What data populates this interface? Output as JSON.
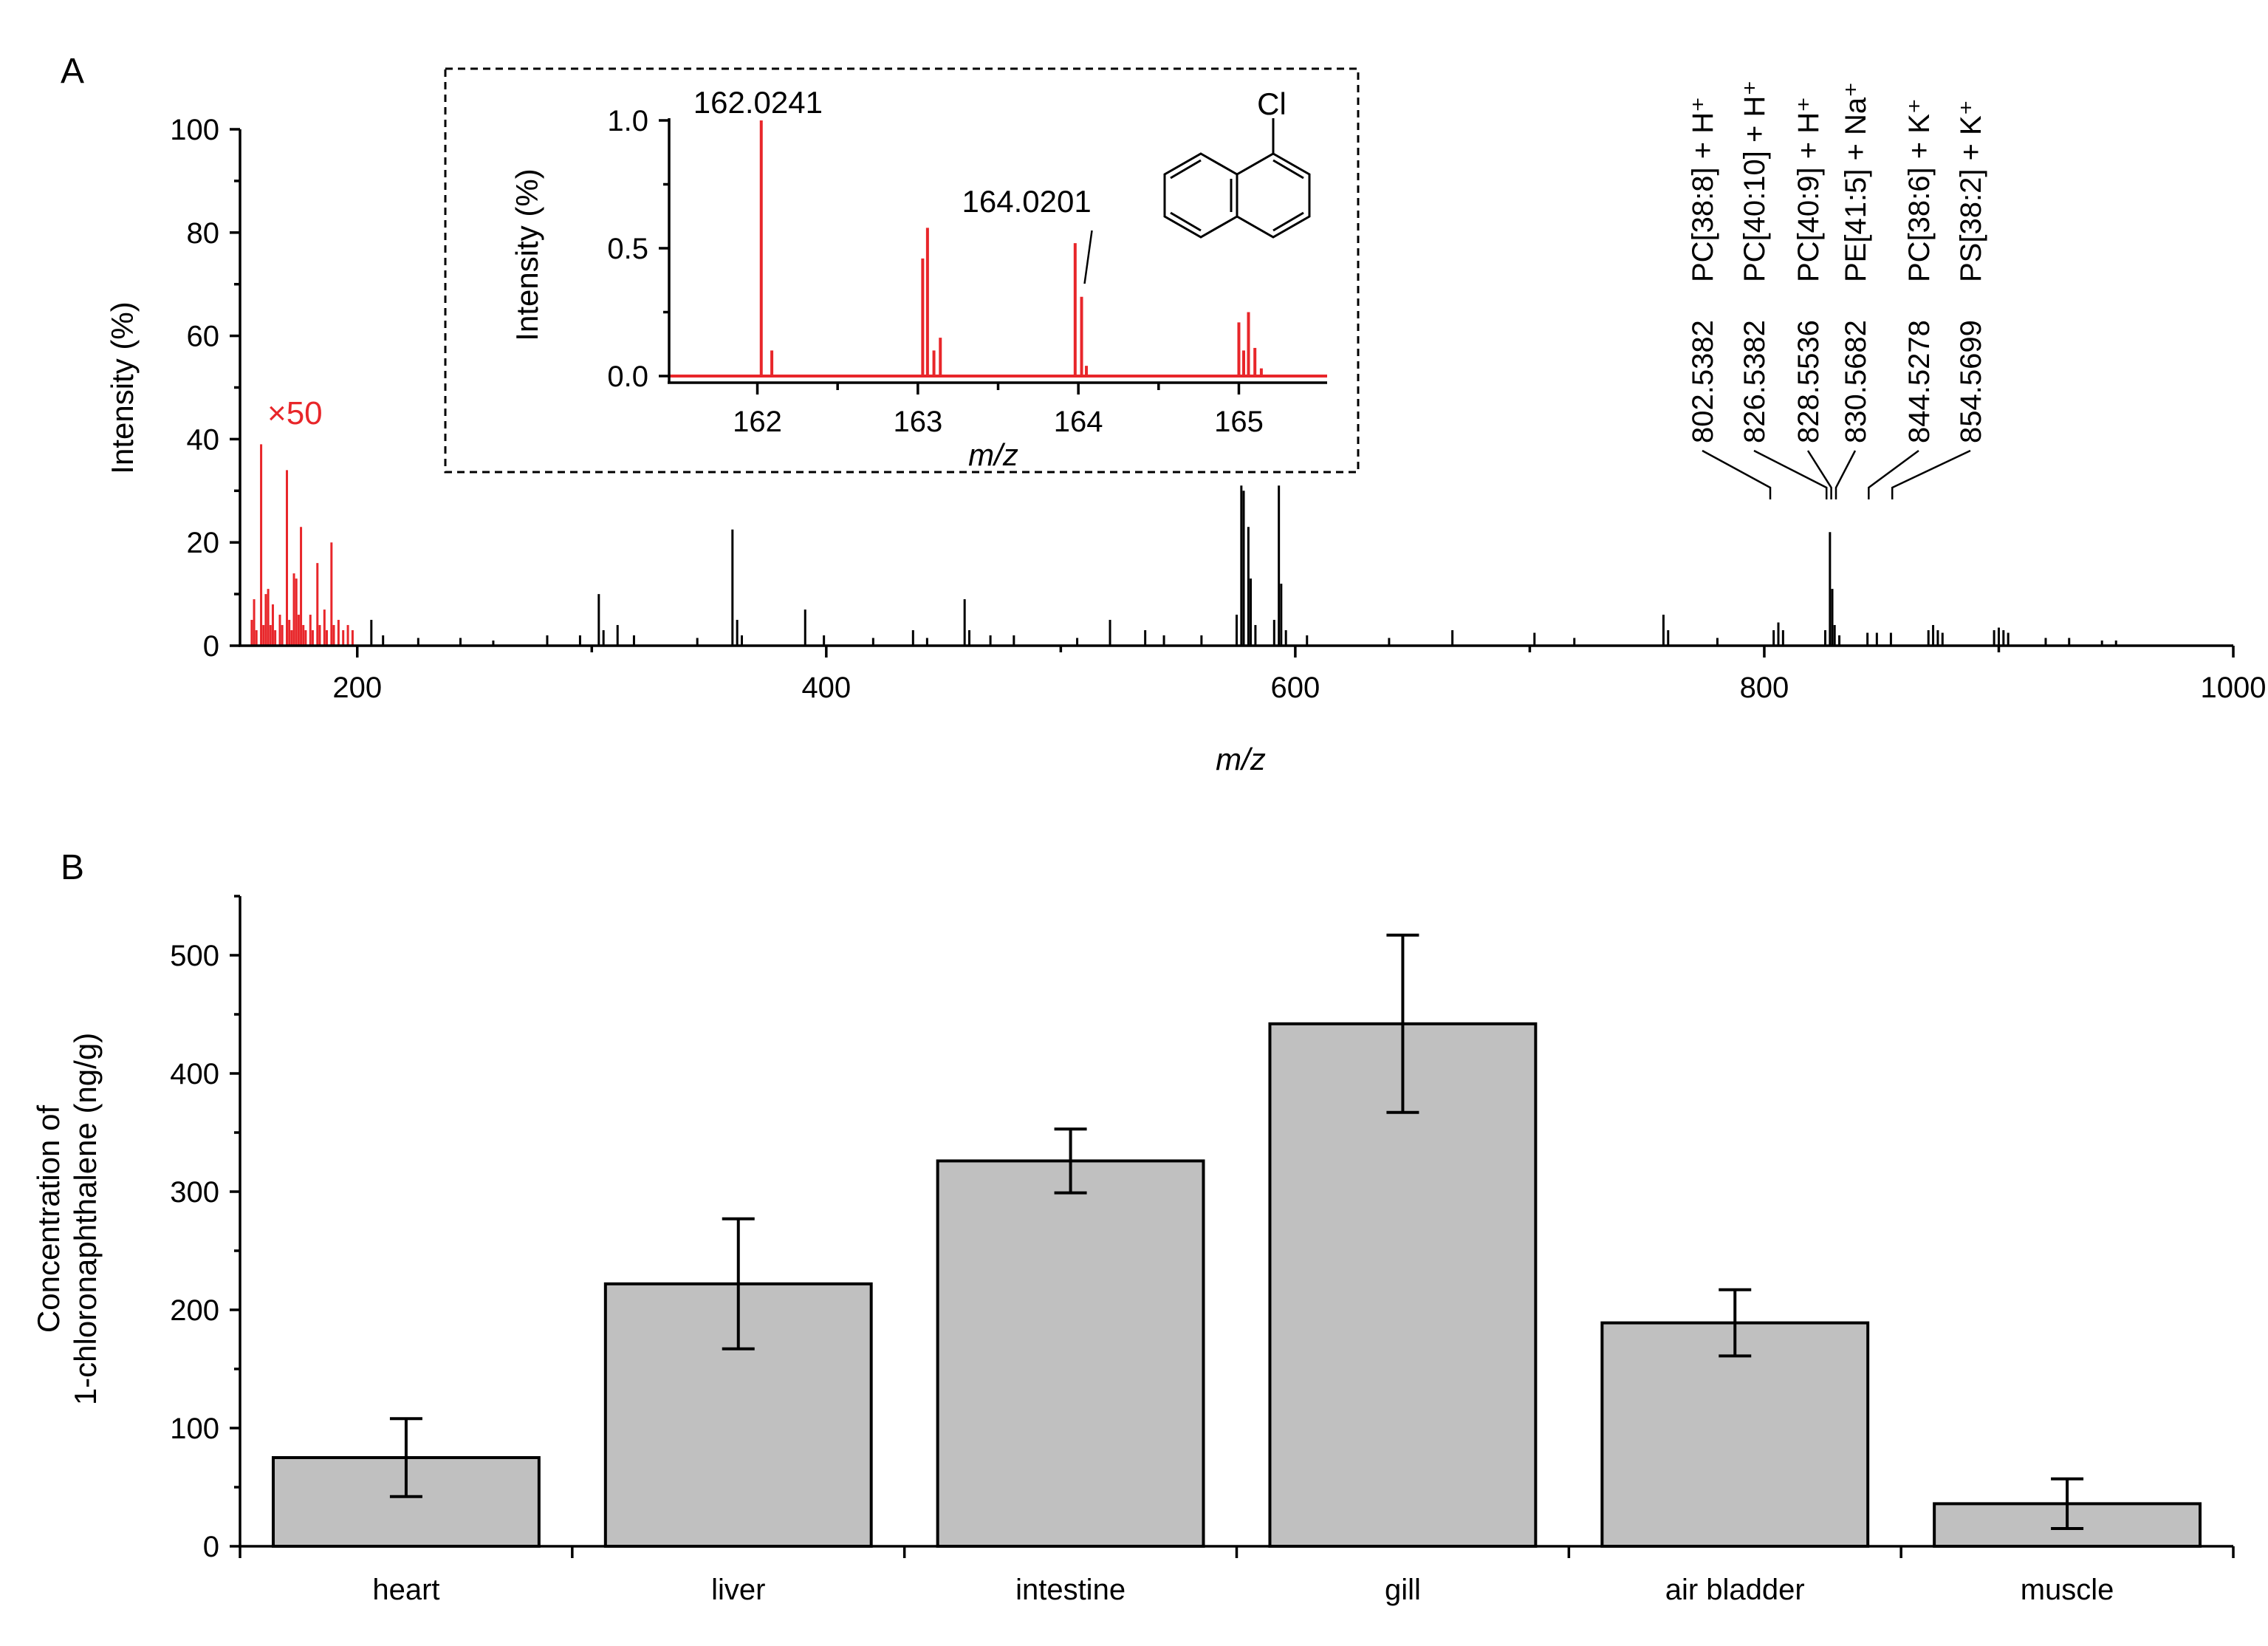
{
  "colors": {
    "spectrum": "#000000",
    "highlight": "#e8262a",
    "bar_fill": "#c0c0c0",
    "axis": "#000000"
  },
  "panel_a": {
    "letter": "A",
    "magnification_label": "×50",
    "compound": "Cl"
  },
  "panel_b": {
    "letter": "B"
  },
  "chart_data": [
    {
      "id": "mass-spectrum",
      "type": "line",
      "title": "",
      "xlabel": "m/z",
      "ylabel": "Intensity (%)",
      "xlim": [
        150,
        1000
      ],
      "ylim": [
        0,
        100
      ],
      "xticks": [
        200,
        400,
        600,
        800,
        1000
      ],
      "yticks": [
        0,
        20,
        40,
        60,
        80,
        100
      ],
      "magnified_region": {
        "label": "×50",
        "xrange": [
          150,
          200
        ]
      },
      "peaks_magnified": [
        {
          "x": 155,
          "y": 5
        },
        {
          "x": 156,
          "y": 9
        },
        {
          "x": 157,
          "y": 3
        },
        {
          "x": 159,
          "y": 39
        },
        {
          "x": 160,
          "y": 4
        },
        {
          "x": 161,
          "y": 10
        },
        {
          "x": 162,
          "y": 11
        },
        {
          "x": 163,
          "y": 4
        },
        {
          "x": 164,
          "y": 8
        },
        {
          "x": 165,
          "y": 3
        },
        {
          "x": 167,
          "y": 6
        },
        {
          "x": 168,
          "y": 4
        },
        {
          "x": 170,
          "y": 34
        },
        {
          "x": 171,
          "y": 5
        },
        {
          "x": 172,
          "y": 3
        },
        {
          "x": 173,
          "y": 14
        },
        {
          "x": 174,
          "y": 13
        },
        {
          "x": 175,
          "y": 6
        },
        {
          "x": 176,
          "y": 23
        },
        {
          "x": 177,
          "y": 4
        },
        {
          "x": 178,
          "y": 3
        },
        {
          "x": 180,
          "y": 6
        },
        {
          "x": 181,
          "y": 3
        },
        {
          "x": 183,
          "y": 16
        },
        {
          "x": 184,
          "y": 4
        },
        {
          "x": 186,
          "y": 7
        },
        {
          "x": 187,
          "y": 3
        },
        {
          "x": 189,
          "y": 20
        },
        {
          "x": 190,
          "y": 4
        },
        {
          "x": 192,
          "y": 5
        },
        {
          "x": 194,
          "y": 3
        },
        {
          "x": 196,
          "y": 4
        },
        {
          "x": 198,
          "y": 3
        }
      ],
      "peaks": [
        {
          "x": 206,
          "y": 5
        },
        {
          "x": 211,
          "y": 2
        },
        {
          "x": 226,
          "y": 1.5
        },
        {
          "x": 244,
          "y": 1.5
        },
        {
          "x": 258,
          "y": 1
        },
        {
          "x": 281,
          "y": 2
        },
        {
          "x": 295,
          "y": 2
        },
        {
          "x": 303,
          "y": 10
        },
        {
          "x": 305,
          "y": 3
        },
        {
          "x": 311,
          "y": 4
        },
        {
          "x": 318,
          "y": 2
        },
        {
          "x": 345,
          "y": 1.5
        },
        {
          "x": 360,
          "y": 22.5
        },
        {
          "x": 362,
          "y": 5
        },
        {
          "x": 364,
          "y": 2
        },
        {
          "x": 391,
          "y": 7
        },
        {
          "x": 399,
          "y": 2
        },
        {
          "x": 420,
          "y": 1.5
        },
        {
          "x": 437,
          "y": 3
        },
        {
          "x": 443,
          "y": 1.5
        },
        {
          "x": 459,
          "y": 9
        },
        {
          "x": 461,
          "y": 3
        },
        {
          "x": 470,
          "y": 2
        },
        {
          "x": 480,
          "y": 2
        },
        {
          "x": 507,
          "y": 1.5
        },
        {
          "x": 521,
          "y": 5
        },
        {
          "x": 536,
          "y": 3
        },
        {
          "x": 544,
          "y": 2
        },
        {
          "x": 560,
          "y": 2
        },
        {
          "x": 575,
          "y": 6
        },
        {
          "x": 577,
          "y": 31
        },
        {
          "x": 578,
          "y": 30
        },
        {
          "x": 580,
          "y": 23
        },
        {
          "x": 581,
          "y": 13
        },
        {
          "x": 583,
          "y": 4
        },
        {
          "x": 591,
          "y": 5
        },
        {
          "x": 593,
          "y": 31
        },
        {
          "x": 594,
          "y": 12
        },
        {
          "x": 596,
          "y": 3
        },
        {
          "x": 605,
          "y": 2
        },
        {
          "x": 640,
          "y": 1.5
        },
        {
          "x": 667,
          "y": 3
        },
        {
          "x": 702,
          "y": 2.5
        },
        {
          "x": 719,
          "y": 1.5
        },
        {
          "x": 757,
          "y": 6
        },
        {
          "x": 759,
          "y": 3
        },
        {
          "x": 780,
          "y": 1.5
        },
        {
          "x": 804,
          "y": 3
        },
        {
          "x": 806,
          "y": 4.5
        },
        {
          "x": 808,
          "y": 3
        },
        {
          "x": 826,
          "y": 3
        },
        {
          "x": 828,
          "y": 22
        },
        {
          "x": 829,
          "y": 11
        },
        {
          "x": 830,
          "y": 4
        },
        {
          "x": 832,
          "y": 2
        },
        {
          "x": 844,
          "y": 2.5
        },
        {
          "x": 848,
          "y": 2.5
        },
        {
          "x": 854,
          "y": 2.5
        },
        {
          "x": 870,
          "y": 3
        },
        {
          "x": 872,
          "y": 4
        },
        {
          "x": 874,
          "y": 3
        },
        {
          "x": 876,
          "y": 2.5
        },
        {
          "x": 898,
          "y": 3
        },
        {
          "x": 900,
          "y": 3.5
        },
        {
          "x": 902,
          "y": 3
        },
        {
          "x": 904,
          "y": 2.5
        },
        {
          "x": 920,
          "y": 1.5
        },
        {
          "x": 930,
          "y": 1.5
        },
        {
          "x": 944,
          "y": 1
        },
        {
          "x": 950,
          "y": 1
        }
      ],
      "annotations": [
        {
          "mz": "802.5382",
          "ion": "PC[38:8] + H⁺",
          "x": 802.5382
        },
        {
          "mz": "826.5382",
          "ion": "PC[40:10] + H⁺",
          "x": 826.5382
        },
        {
          "mz": "828.5536",
          "ion": "PC[40:9] + H⁺",
          "x": 828.5536
        },
        {
          "mz": "830.5682",
          "ion": "PE[41:5] + Na⁺",
          "x": 830.5682
        },
        {
          "mz": "844.5278",
          "ion": "PC[38:6] + K⁺",
          "x": 844.5278
        },
        {
          "mz": "854.5699",
          "ion": "PS[38:2] + K⁺",
          "x": 854.5699
        }
      ]
    },
    {
      "id": "inset-isotope-spectrum",
      "type": "line",
      "title": "",
      "xlabel": "m/z",
      "ylabel": "Intensity (%)",
      "xlim": [
        161.45,
        165.55
      ],
      "ylim": [
        0,
        1.0
      ],
      "xticks": [
        162,
        163,
        164,
        165
      ],
      "yticks": [
        0.0,
        0.5,
        1.0
      ],
      "ytick_labels": [
        "0.0",
        "0.5",
        "1.0"
      ],
      "peaks": [
        {
          "x": 162.0241,
          "y": 1.0
        },
        {
          "x": 162.09,
          "y": 0.1
        },
        {
          "x": 163.03,
          "y": 0.46
        },
        {
          "x": 163.06,
          "y": 0.58
        },
        {
          "x": 163.1,
          "y": 0.1
        },
        {
          "x": 163.14,
          "y": 0.15
        },
        {
          "x": 163.98,
          "y": 0.52
        },
        {
          "x": 164.0201,
          "y": 0.31
        },
        {
          "x": 164.05,
          "y": 0.04
        },
        {
          "x": 165.0,
          "y": 0.21
        },
        {
          "x": 165.03,
          "y": 0.1
        },
        {
          "x": 165.06,
          "y": 0.25
        },
        {
          "x": 165.1,
          "y": 0.11
        },
        {
          "x": 165.14,
          "y": 0.03
        }
      ],
      "peak_labels": [
        {
          "x": 162.0241,
          "text": "162.0241"
        },
        {
          "x": 164.0201,
          "text": "164.0201"
        }
      ]
    },
    {
      "id": "tissue-concentration",
      "type": "bar",
      "title": "",
      "xlabel": "",
      "ylabel_line1": "Concentration of",
      "ylabel_line2": "1-chloronaphthalene (ng/g)",
      "categories": [
        "heart",
        "liver",
        "intestine",
        "gill",
        "air bladder",
        "muscle"
      ],
      "values": [
        75,
        222,
        326,
        442,
        189,
        36
      ],
      "errors": [
        33,
        55,
        27,
        75,
        28,
        21
      ],
      "ylim": [
        0,
        550
      ],
      "yticks": [
        0,
        100,
        200,
        300,
        400,
        500
      ]
    }
  ]
}
